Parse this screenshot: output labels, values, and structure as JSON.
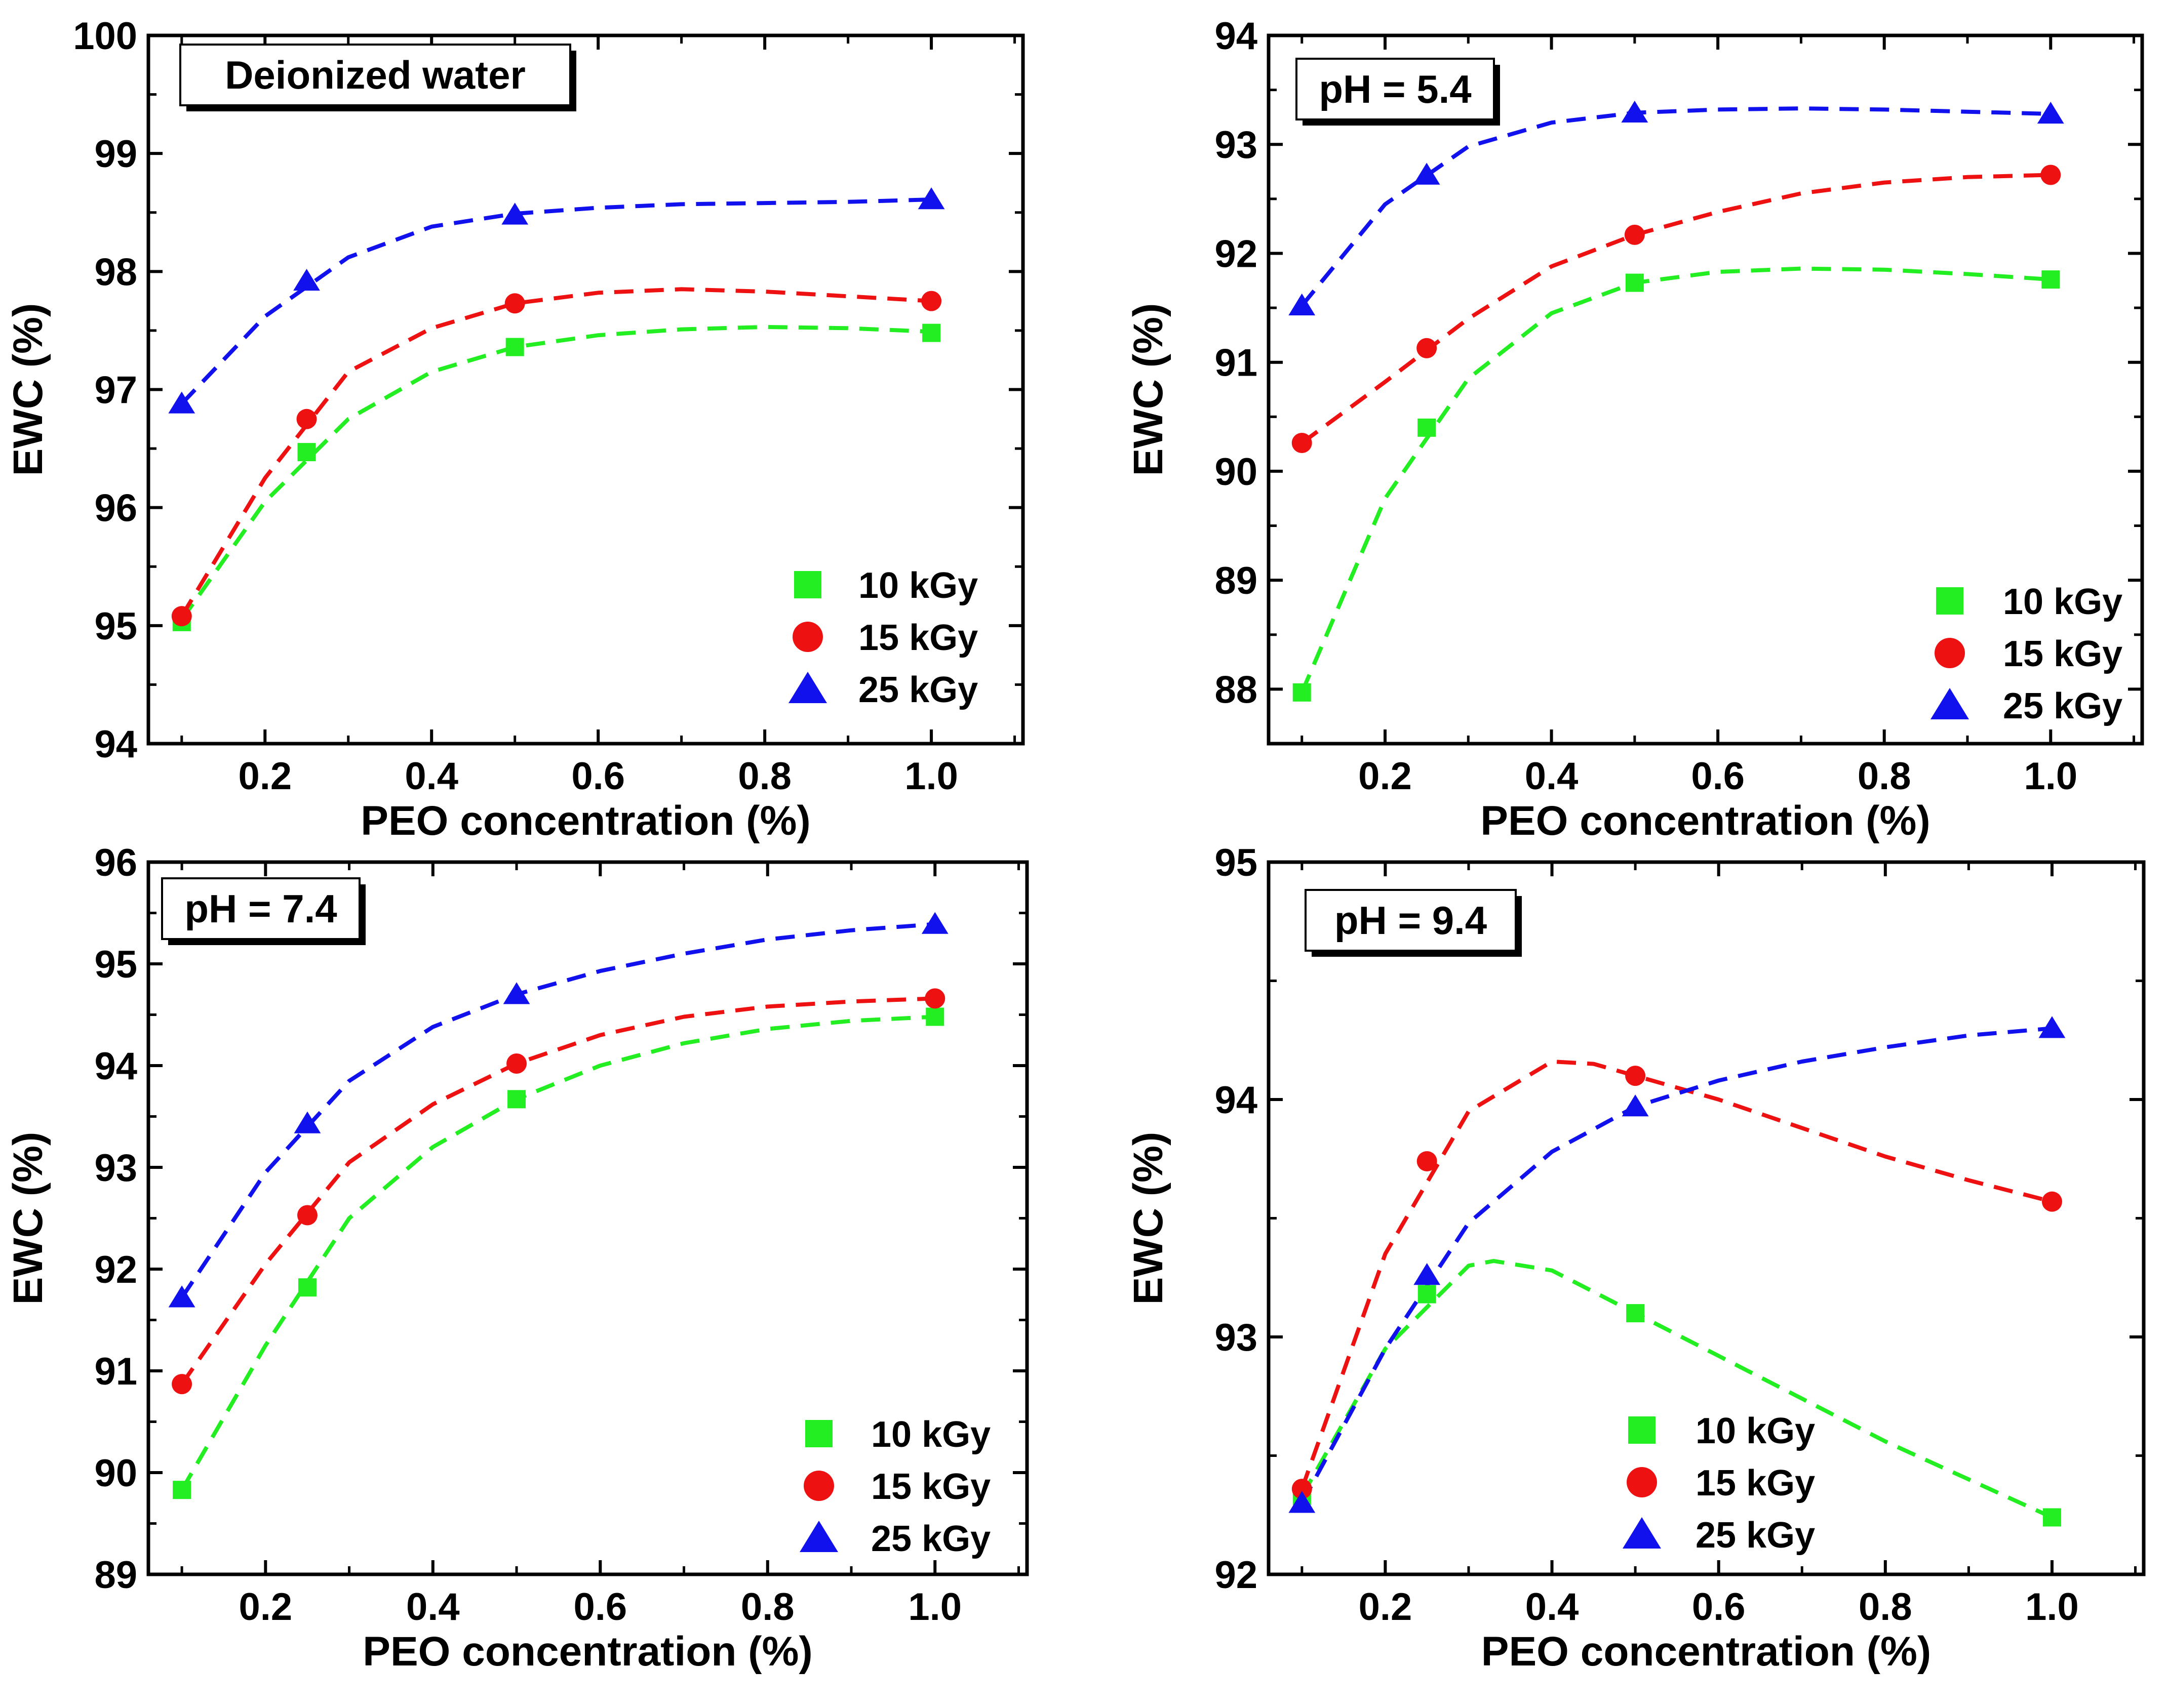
{
  "chart_data": [
    {
      "type": "scatter",
      "title": "Deionized water",
      "xlabel": "PEO concentration (%)",
      "ylabel": "EWC (%)",
      "xlim": [
        0.06,
        1.11
      ],
      "ylim": [
        94,
        100
      ],
      "x_ticks": [
        0.2,
        0.4,
        0.6,
        0.8,
        1.0
      ],
      "x_tick_labels": [
        "0.2",
        "0.4",
        "0.6",
        "0.8",
        "1.0"
      ],
      "y_ticks": [
        94,
        95,
        96,
        97,
        98,
        99,
        100
      ],
      "y_tick_labels": [
        "94",
        "95",
        "96",
        "97",
        "98",
        "99",
        "100"
      ],
      "legend": "bottom-right",
      "x": [
        0.1,
        0.25,
        0.5,
        1.0
      ],
      "series": [
        {
          "name": "10 kGy",
          "marker": "square",
          "color": "#22ee22",
          "values": [
            95.03,
            96.47,
            97.36,
            97.48
          ],
          "fit_x": [
            0.1,
            0.2,
            0.3,
            0.4,
            0.5,
            0.6,
            0.7,
            0.8,
            0.9,
            1.0
          ],
          "fit_y": [
            95.05,
            96.05,
            96.75,
            97.15,
            97.36,
            97.46,
            97.51,
            97.53,
            97.52,
            97.49
          ]
        },
        {
          "name": "15 kGy",
          "marker": "circle",
          "color": "#ee1111",
          "values": [
            95.08,
            96.75,
            97.73,
            97.75
          ],
          "fit_x": [
            0.1,
            0.2,
            0.3,
            0.4,
            0.5,
            0.6,
            0.7,
            0.8,
            0.9,
            1.0
          ],
          "fit_y": [
            95.08,
            96.25,
            97.15,
            97.52,
            97.73,
            97.82,
            97.85,
            97.83,
            97.79,
            97.75
          ]
        },
        {
          "name": "25 kGy",
          "marker": "triangle",
          "color": "#1111ee",
          "values": [
            96.88,
            97.92,
            98.48,
            98.61
          ],
          "fit_x": [
            0.1,
            0.2,
            0.3,
            0.4,
            0.5,
            0.6,
            0.7,
            0.8,
            0.9,
            1.0
          ],
          "fit_y": [
            96.88,
            97.62,
            98.12,
            98.38,
            98.49,
            98.54,
            98.57,
            98.58,
            98.59,
            98.61
          ]
        }
      ]
    },
    {
      "type": "scatter",
      "title": "pH = 5.4",
      "xlabel": "PEO concentration (%)",
      "ylabel": "EWC (%)",
      "xlim": [
        0.06,
        1.11
      ],
      "ylim": [
        87.5,
        94
      ],
      "x_ticks": [
        0.2,
        0.4,
        0.6,
        0.8,
        1.0
      ],
      "x_tick_labels": [
        "0.2",
        "0.4",
        "0.6",
        "0.8",
        "1.0"
      ],
      "y_ticks": [
        88,
        89,
        90,
        91,
        92,
        93,
        94
      ],
      "y_tick_labels": [
        "88",
        "89",
        "90",
        "91",
        "92",
        "93",
        "94"
      ],
      "legend": "bottom-right",
      "x": [
        0.1,
        0.25,
        0.5,
        1.0
      ],
      "series": [
        {
          "name": "10 kGy",
          "marker": "square",
          "color": "#22ee22",
          "values": [
            87.97,
            90.4,
            91.73,
            91.76
          ],
          "fit_x": [
            0.1,
            0.2,
            0.3,
            0.4,
            0.5,
            0.6,
            0.7,
            0.8,
            0.9,
            1.0
          ],
          "fit_y": [
            87.97,
            89.75,
            90.85,
            91.45,
            91.73,
            91.83,
            91.86,
            91.85,
            91.81,
            91.76
          ]
        },
        {
          "name": "15 kGy",
          "marker": "circle",
          "color": "#ee1111",
          "values": [
            90.26,
            91.13,
            92.17,
            92.72
          ],
          "fit_x": [
            0.1,
            0.2,
            0.3,
            0.4,
            0.5,
            0.6,
            0.7,
            0.8,
            0.9,
            1.0
          ],
          "fit_y": [
            90.26,
            90.82,
            91.4,
            91.88,
            92.17,
            92.38,
            92.55,
            92.65,
            92.7,
            92.72
          ]
        },
        {
          "name": "25 kGy",
          "marker": "triangle",
          "color": "#1111ee",
          "values": [
            91.52,
            92.72,
            93.29,
            93.28
          ],
          "fit_x": [
            0.1,
            0.2,
            0.3,
            0.4,
            0.5,
            0.6,
            0.7,
            0.8,
            0.9,
            1.0
          ],
          "fit_y": [
            91.52,
            92.45,
            92.98,
            93.2,
            93.29,
            93.32,
            93.33,
            93.32,
            93.3,
            93.28
          ]
        }
      ]
    },
    {
      "type": "scatter",
      "title": "pH = 7.4",
      "xlabel": "PEO concentration (%)",
      "ylabel": "EWC (%)",
      "xlim": [
        0.06,
        1.11
      ],
      "ylim": [
        89,
        96
      ],
      "x_ticks": [
        0.2,
        0.4,
        0.6,
        0.8,
        1.0
      ],
      "x_tick_labels": [
        "0.2",
        "0.4",
        "0.6",
        "0.8",
        "1.0"
      ],
      "y_ticks": [
        89,
        90,
        91,
        92,
        93,
        94,
        95,
        96
      ],
      "y_tick_labels": [
        "89",
        "90",
        "91",
        "92",
        "93",
        "94",
        "95",
        "96"
      ],
      "legend": "bottom-right",
      "x": [
        0.1,
        0.25,
        0.5,
        1.0
      ],
      "series": [
        {
          "name": "10 kGy",
          "marker": "square",
          "color": "#22ee22",
          "values": [
            89.83,
            91.82,
            93.67,
            94.48
          ],
          "fit_x": [
            0.1,
            0.2,
            0.3,
            0.4,
            0.5,
            0.6,
            0.7,
            0.8,
            0.9,
            1.0
          ],
          "fit_y": [
            89.83,
            91.25,
            92.5,
            93.2,
            93.67,
            94.0,
            94.22,
            94.36,
            94.44,
            94.48
          ]
        },
        {
          "name": "15 kGy",
          "marker": "circle",
          "color": "#ee1111",
          "values": [
            90.87,
            92.53,
            94.02,
            94.66
          ],
          "fit_x": [
            0.1,
            0.2,
            0.3,
            0.4,
            0.5,
            0.6,
            0.7,
            0.8,
            0.9,
            1.0
          ],
          "fit_y": [
            90.87,
            92.05,
            93.05,
            93.62,
            94.02,
            94.3,
            94.48,
            94.58,
            94.63,
            94.66
          ]
        },
        {
          "name": "25 kGy",
          "marker": "triangle",
          "color": "#1111ee",
          "values": [
            91.72,
            93.43,
            94.7,
            95.39
          ],
          "fit_x": [
            0.1,
            0.2,
            0.3,
            0.4,
            0.5,
            0.6,
            0.7,
            0.8,
            0.9,
            1.0
          ],
          "fit_y": [
            91.72,
            92.95,
            93.85,
            94.38,
            94.7,
            94.93,
            95.1,
            95.24,
            95.33,
            95.39
          ]
        }
      ]
    },
    {
      "type": "scatter",
      "title": "pH = 9.4",
      "xlabel": "PEO concentration (%)",
      "ylabel": "EWC (%)",
      "xlim": [
        0.06,
        1.11
      ],
      "ylim": [
        92,
        95
      ],
      "x_ticks": [
        0.2,
        0.4,
        0.6,
        0.8,
        1.0
      ],
      "x_tick_labels": [
        "0.2",
        "0.4",
        "0.6",
        "0.8",
        "1.0"
      ],
      "y_ticks": [
        92,
        93,
        94,
        95
      ],
      "y_tick_labels": [
        "92",
        "93",
        "94",
        "95"
      ],
      "legend": "bottom-center",
      "x": [
        0.1,
        0.25,
        0.5,
        1.0
      ],
      "series": [
        {
          "name": "10 kGy",
          "marker": "square",
          "color": "#22ee22",
          "values": [
            92.33,
            93.18,
            93.1,
            92.24
          ],
          "fit_x": [
            0.1,
            0.2,
            0.3,
            0.33,
            0.4,
            0.5,
            0.6,
            0.7,
            0.8,
            0.9,
            1.0
          ],
          "fit_y": [
            92.33,
            92.95,
            93.3,
            93.32,
            93.28,
            93.1,
            92.92,
            92.74,
            92.56,
            92.4,
            92.24
          ]
        },
        {
          "name": "15 kGy",
          "marker": "circle",
          "color": "#ee1111",
          "values": [
            92.36,
            93.74,
            94.1,
            93.57
          ],
          "fit_x": [
            0.1,
            0.2,
            0.3,
            0.4,
            0.45,
            0.5,
            0.6,
            0.7,
            0.8,
            0.9,
            1.0
          ],
          "fit_y": [
            92.36,
            93.35,
            93.95,
            94.16,
            94.15,
            94.1,
            94.0,
            93.88,
            93.76,
            93.66,
            93.57
          ]
        },
        {
          "name": "25 kGy",
          "marker": "triangle",
          "color": "#1111ee",
          "values": [
            92.3,
            93.26,
            93.97,
            94.3
          ],
          "fit_x": [
            0.1,
            0.2,
            0.3,
            0.4,
            0.5,
            0.6,
            0.7,
            0.8,
            0.9,
            1.0
          ],
          "fit_y": [
            92.3,
            92.95,
            93.48,
            93.78,
            93.97,
            94.08,
            94.16,
            94.22,
            94.27,
            94.3
          ]
        }
      ]
    }
  ]
}
